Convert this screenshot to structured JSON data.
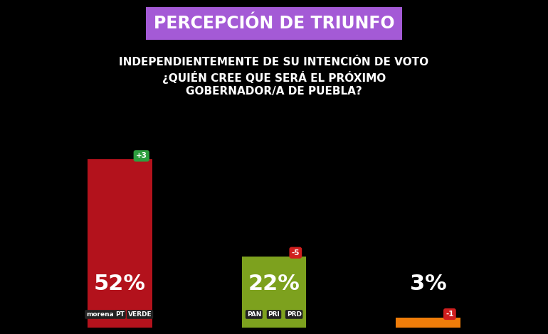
{
  "chart_data": {
    "type": "bar",
    "title": "PERCEPCIÓN DE TRIUNFO",
    "subtitle": "INDEPENDIENTEMENTE DE SU INTENCIÓN DE VOTO\n¿QUIÉN CREE QUE SERÁ EL PRÓXIMO\nGOBERNADOR/A DE PUEBLA?",
    "categories": [
      null,
      null,
      null
    ],
    "values": [
      52,
      22,
      3
    ],
    "value_labels": [
      "52%",
      "22%",
      "3%"
    ],
    "changes": [
      {
        "value": 3,
        "label": "+3"
      },
      {
        "value": -5,
        "label": "-5"
      },
      {
        "value": -1,
        "label": "-1"
      }
    ],
    "parties": [
      [
        "morena",
        "PT",
        "VERDE"
      ],
      [
        "PAN",
        "PRI",
        "PRD"
      ],
      []
    ],
    "colors": [
      "#b3121c",
      "#7da11e",
      "#ef7d0a"
    ],
    "ylim": [
      0,
      60
    ],
    "data_labels": true,
    "tick_labels": false
  }
}
